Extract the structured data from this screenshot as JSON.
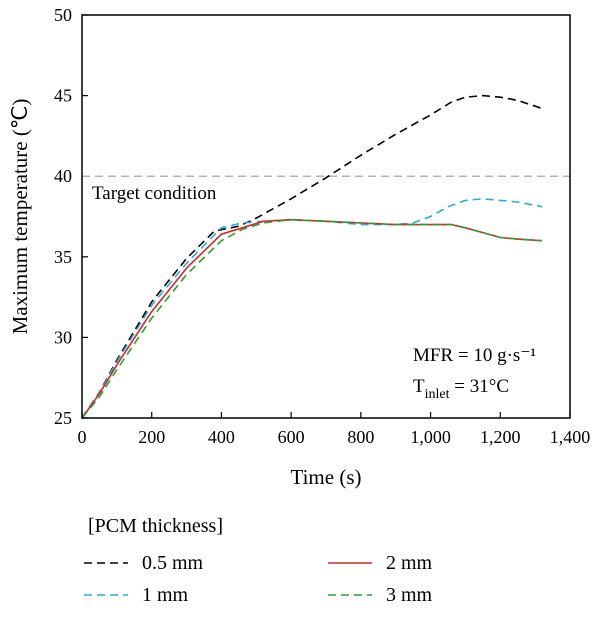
{
  "chart_data": {
    "type": "line",
    "xlabel": "Time (s)",
    "ylabel": "Maximum temperature (℃)",
    "xlim": [
      0,
      1400
    ],
    "ylim": [
      25,
      50
    ],
    "x_ticks": [
      0,
      200,
      400,
      600,
      800,
      1000,
      1200,
      1400
    ],
    "x_tick_labels": [
      "0",
      "200",
      "400",
      "600",
      "800",
      "1,000",
      "1,200",
      "1,400"
    ],
    "y_ticks": [
      25,
      30,
      35,
      40,
      45,
      50
    ],
    "y_tick_labels": [
      "25",
      "30",
      "35",
      "40",
      "45",
      "50"
    ],
    "grid": false,
    "reference_line": {
      "y": 40,
      "label": "Target condition",
      "color": "#b3b3b3"
    },
    "annotations": {
      "mfr": "MFR = 10 g·s⁻¹",
      "t_main": "T",
      "t_sub": "inlet",
      "t_rest": " = 31°C"
    },
    "legend": {
      "title": "[PCM thickness]",
      "position": "bottom"
    },
    "series": [
      {
        "name": "0.5 mm",
        "color": "#000000",
        "dash": "dashed",
        "x": [
          0,
          50,
          100,
          200,
          300,
          380,
          450,
          500,
          600,
          700,
          800,
          900,
          1000,
          1060,
          1100,
          1150,
          1200,
          1250,
          1320
        ],
        "y": [
          25,
          26.6,
          28.6,
          32.2,
          34.9,
          36.6,
          36.9,
          37.4,
          38.6,
          39.9,
          41.3,
          42.6,
          43.8,
          44.6,
          44.9,
          45.0,
          44.9,
          44.7,
          44.2
        ]
      },
      {
        "name": "1 mm",
        "color": "#29abe2",
        "dash": "dashed",
        "x": [
          0,
          50,
          100,
          200,
          300,
          400,
          460,
          520,
          600,
          700,
          800,
          900,
          950,
          1000,
          1050,
          1100,
          1150,
          1200,
          1250,
          1320
        ],
        "y": [
          25,
          26.6,
          28.5,
          32.0,
          34.6,
          36.8,
          37.1,
          37.2,
          37.3,
          37.2,
          37.0,
          37.0,
          37.1,
          37.5,
          38.1,
          38.5,
          38.6,
          38.5,
          38.4,
          38.1
        ]
      },
      {
        "name": "2 mm",
        "color": "#d62728",
        "dash": "solid",
        "x": [
          0,
          50,
          100,
          200,
          300,
          400,
          460,
          520,
          600,
          700,
          800,
          900,
          1000,
          1060,
          1100,
          1150,
          1200,
          1250,
          1320
        ],
        "y": [
          25,
          26.5,
          28.3,
          31.6,
          34.3,
          36.4,
          36.8,
          37.2,
          37.3,
          37.2,
          37.1,
          37.0,
          37.0,
          37.0,
          36.8,
          36.5,
          36.2,
          36.1,
          36.0
        ]
      },
      {
        "name": "3 mm",
        "color": "#2ca02c",
        "dash": "dashed",
        "x": [
          0,
          50,
          100,
          200,
          300,
          400,
          460,
          520,
          600,
          700,
          800,
          900,
          1000,
          1060,
          1100,
          1150,
          1200,
          1250,
          1320
        ],
        "y": [
          25,
          26.3,
          28.0,
          31.2,
          33.9,
          36.0,
          36.7,
          37.1,
          37.3,
          37.2,
          37.1,
          37.0,
          37.0,
          37.0,
          36.8,
          36.5,
          36.2,
          36.1,
          36.0
        ]
      }
    ]
  }
}
